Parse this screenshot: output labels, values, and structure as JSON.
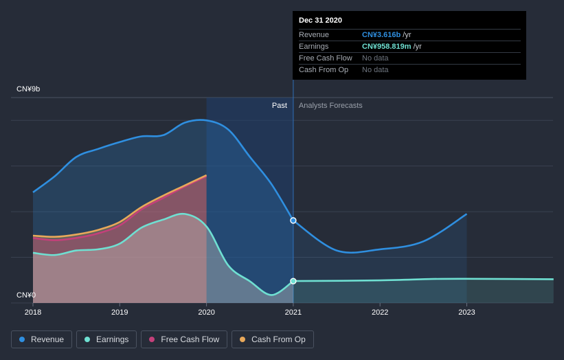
{
  "chart_data": {
    "type": "area",
    "title": "",
    "y_unit": "CN¥",
    "ylim": [
      0,
      9
    ],
    "y_tick_labels": [
      "CN¥9b",
      "CN¥0"
    ],
    "x_tick_labels": [
      "2018",
      "2019",
      "2020",
      "2021",
      "2022",
      "2023"
    ],
    "divider_date": 2021.0,
    "past_label": "Past",
    "forecast_label": "Analysts Forecasts",
    "series": [
      {
        "name": "Revenue",
        "color": "#2f8fe0",
        "has_fill": true,
        "x": [
          2018.0,
          2018.25,
          2018.5,
          2018.75,
          2019.0,
          2019.25,
          2019.5,
          2019.75,
          2020.0,
          2020.25,
          2020.5,
          2020.75,
          2021.0
        ],
        "values": [
          4.85,
          5.55,
          6.4,
          6.75,
          7.05,
          7.3,
          7.35,
          7.9,
          8.0,
          7.6,
          6.4,
          5.2,
          3.616
        ],
        "forecast_x": [
          2021.0,
          2021.5,
          2022.0,
          2022.5,
          2023.0
        ],
        "forecast_values": [
          3.616,
          2.3,
          2.35,
          2.7,
          3.9
        ]
      },
      {
        "name": "Earnings",
        "color": "#6fe0d2",
        "has_fill": true,
        "x": [
          2018.0,
          2018.25,
          2018.5,
          2018.75,
          2019.0,
          2019.25,
          2019.5,
          2019.75,
          2020.0,
          2020.25,
          2020.5,
          2020.75,
          2021.0
        ],
        "values": [
          2.2,
          2.1,
          2.3,
          2.35,
          2.6,
          3.3,
          3.65,
          3.9,
          3.35,
          1.65,
          0.95,
          0.35,
          0.959
        ],
        "forecast_x": [
          2021.0,
          2022.0,
          2022.6,
          2023.0,
          2024.0
        ],
        "forecast_values": [
          0.959,
          0.99,
          1.05,
          1.06,
          1.04
        ]
      },
      {
        "name": "Free Cash Flow",
        "color": "#c4407a",
        "has_fill": true,
        "x": [
          2018.0,
          2018.25,
          2018.5,
          2018.75,
          2019.0,
          2019.25,
          2019.5,
          2019.75,
          2020.0
        ],
        "values": [
          2.85,
          2.75,
          2.85,
          3.05,
          3.4,
          4.1,
          4.6,
          5.1,
          5.55
        ],
        "forecast_x": [],
        "forecast_values": []
      },
      {
        "name": "Cash From Op",
        "color": "#e8a85a",
        "has_fill": true,
        "x": [
          2018.0,
          2018.25,
          2018.5,
          2018.75,
          2019.0,
          2019.25,
          2019.5,
          2019.75,
          2020.0
        ],
        "values": [
          2.95,
          2.9,
          3.0,
          3.2,
          3.55,
          4.2,
          4.7,
          5.15,
          5.6
        ],
        "forecast_x": [],
        "forecast_values": []
      }
    ]
  },
  "tooltip": {
    "date": "Dec 31 2020",
    "rows": [
      {
        "label": "Revenue",
        "value": "CN¥3.616b",
        "unit": "/yr",
        "color": "#2f8fe0"
      },
      {
        "label": "Earnings",
        "value": "CN¥958.819m",
        "unit": "/yr",
        "color": "#6fe0d2"
      },
      {
        "label": "Free Cash Flow",
        "value": "No data",
        "unit": "",
        "color": ""
      },
      {
        "label": "Cash From Op",
        "value": "No data",
        "unit": "",
        "color": ""
      }
    ]
  },
  "legend": [
    {
      "label": "Revenue",
      "color": "#2f8fe0"
    },
    {
      "label": "Earnings",
      "color": "#6fe0d2"
    },
    {
      "label": "Free Cash Flow",
      "color": "#c4407a"
    },
    {
      "label": "Cash From Op",
      "color": "#e8a85a"
    }
  ]
}
